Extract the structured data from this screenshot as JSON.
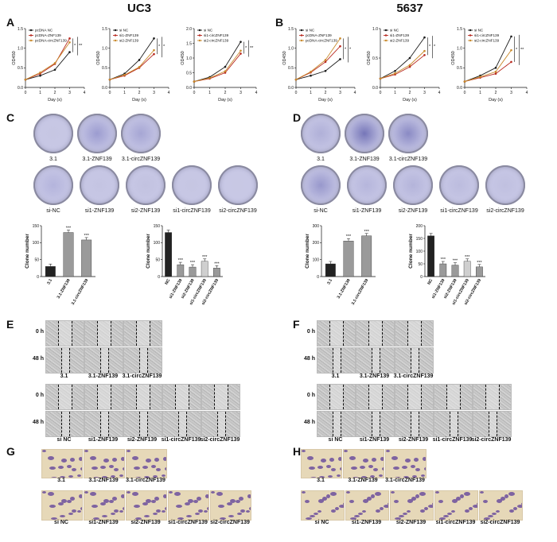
{
  "columns": {
    "left": "UC3",
    "right": "5637"
  },
  "panel_letters": [
    "A",
    "B",
    "C",
    "D",
    "E",
    "F",
    "G",
    "H"
  ],
  "colors": {
    "nc": "#1a1a1a",
    "si1": "#b8281e",
    "si2": "#c98a2b",
    "dish": "#c8c8e6",
    "stain": "#5b3c9a",
    "bar_dark": "#222222",
    "bar_mid": "#9a9a9a",
    "bar_light": "#cfcfcf"
  },
  "chart_data": [
    {
      "id": "A1",
      "type": "line",
      "xlabel": "Day (s)",
      "ylabel": "OD450",
      "ylim": [
        0,
        1.5
      ],
      "yticks": [
        "0.0",
        "0.5",
        "1.0",
        "1.5"
      ],
      "xlim": [
        0,
        4
      ],
      "xticks": [
        "0",
        "1",
        "2",
        "3",
        "4"
      ],
      "x": [
        0,
        1,
        2,
        3
      ],
      "series": [
        {
          "name": "pcDNA NC",
          "values": [
            0.2,
            0.3,
            0.45,
            0.9
          ]
        },
        {
          "name": "pcDNA-ZNF139",
          "values": [
            0.2,
            0.35,
            0.6,
            1.25
          ]
        },
        {
          "name": "pcDNA-circZNF139",
          "values": [
            0.2,
            0.38,
            0.62,
            1.15
          ]
        }
      ],
      "annotations": [
        "*",
        "**"
      ]
    },
    {
      "id": "A2",
      "type": "line",
      "xlabel": "Day (s)",
      "ylabel": "OD450",
      "ylim": [
        0,
        1.5
      ],
      "yticks": [
        "0.0",
        "0.5",
        "1.0",
        "1.5"
      ],
      "xlim": [
        0,
        4
      ],
      "xticks": [
        "0",
        "1",
        "2",
        "3",
        "4"
      ],
      "x": [
        0,
        1,
        2,
        3
      ],
      "series": [
        {
          "name": "si NC",
          "values": [
            0.2,
            0.35,
            0.7,
            1.25
          ]
        },
        {
          "name": "si1-ZNF139",
          "values": [
            0.2,
            0.3,
            0.5,
            0.85
          ]
        },
        {
          "name": "si2-ZNF139",
          "values": [
            0.2,
            0.32,
            0.52,
            0.95
          ]
        }
      ],
      "annotations": [
        "*",
        "*"
      ]
    },
    {
      "id": "A3",
      "type": "line",
      "xlabel": "Day (s)",
      "ylabel": "OD450",
      "ylim": [
        0,
        2.0
      ],
      "yticks": [
        "0.0",
        "0.5",
        "1.0",
        "1.5",
        "2.0"
      ],
      "xlim": [
        0,
        4
      ],
      "xticks": [
        "0",
        "1",
        "2",
        "3",
        "4"
      ],
      "x": [
        0,
        1,
        2,
        3
      ],
      "series": [
        {
          "name": "si NC",
          "values": [
            0.2,
            0.35,
            0.7,
            1.55
          ]
        },
        {
          "name": "si1-circZNF139",
          "values": [
            0.2,
            0.3,
            0.5,
            1.15
          ]
        },
        {
          "name": "si2-circZNF139",
          "values": [
            0.2,
            0.32,
            0.55,
            1.25
          ]
        }
      ],
      "annotations": [
        "*",
        "**"
      ]
    },
    {
      "id": "B1",
      "type": "line",
      "xlabel": "Day (s)",
      "ylabel": "OD450",
      "ylim": [
        0,
        1.5
      ],
      "yticks": [
        "0.0",
        "0.5",
        "1.0",
        "1.5"
      ],
      "xlim": [
        0,
        4
      ],
      "xticks": [
        "0",
        "1",
        "2",
        "3",
        "4"
      ],
      "x": [
        0,
        1,
        2,
        3
      ],
      "series": [
        {
          "name": "si NC",
          "values": [
            0.2,
            0.3,
            0.42,
            0.72
          ]
        },
        {
          "name": "pcDNA-ZNF139",
          "values": [
            0.2,
            0.38,
            0.65,
            1.05
          ]
        },
        {
          "name": "pcDNA-circZNF139",
          "values": [
            0.2,
            0.4,
            0.7,
            1.25
          ]
        }
      ],
      "annotations": [
        "*",
        "*"
      ]
    },
    {
      "id": "B2",
      "type": "line",
      "xlabel": "Day (s)",
      "ylabel": "OD450",
      "ylim": [
        0,
        1.0
      ],
      "yticks": [
        "0.0",
        "0.5",
        "1.0"
      ],
      "xlim": [
        0,
        4
      ],
      "xticks": [
        "0",
        "1",
        "2",
        "3",
        "4"
      ],
      "x": [
        0,
        1,
        2,
        3
      ],
      "series": [
        {
          "name": "si NC",
          "values": [
            0.15,
            0.28,
            0.5,
            0.85
          ]
        },
        {
          "name": "si1-ZNF139",
          "values": [
            0.15,
            0.22,
            0.35,
            0.55
          ]
        },
        {
          "name": "si2-ZNF139",
          "values": [
            0.15,
            0.24,
            0.38,
            0.62
          ]
        }
      ],
      "annotations": [
        "*",
        "*"
      ]
    },
    {
      "id": "B3",
      "type": "line",
      "xlabel": "Day (s)",
      "ylabel": "OD450",
      "ylim": [
        0,
        1.5
      ],
      "yticks": [
        "0.0",
        "0.5",
        "1.0",
        "1.5"
      ],
      "xlim": [
        0,
        4
      ],
      "xticks": [
        "0",
        "1",
        "2",
        "3",
        "4"
      ],
      "x": [
        0,
        1,
        2,
        3
      ],
      "series": [
        {
          "name": "si NC",
          "values": [
            0.15,
            0.3,
            0.5,
            1.3
          ]
        },
        {
          "name": "si1-circZNF139",
          "values": [
            0.15,
            0.25,
            0.35,
            0.65
          ]
        },
        {
          "name": "si2-circZNF139",
          "values": [
            0.15,
            0.27,
            0.4,
            0.95
          ]
        }
      ],
      "annotations": [
        "*",
        "**"
      ]
    },
    {
      "id": "C1",
      "type": "bar",
      "ylabel": "Clone number",
      "ylim": [
        0,
        150
      ],
      "yticks": [
        "0",
        "50",
        "100",
        "150"
      ],
      "categories": [
        "3.1",
        "3.1-ZNF139",
        "3.1-circZNF139"
      ],
      "values": [
        30,
        130,
        108
      ],
      "annotations": [
        "",
        "***",
        "***"
      ]
    },
    {
      "id": "C2",
      "type": "bar",
      "ylabel": "Clone number",
      "ylim": [
        0,
        150
      ],
      "yticks": [
        "0",
        "50",
        "100",
        "150"
      ],
      "categories": [
        "NC",
        "si1-ZNF139",
        "si2-ZNF139",
        "si1-circZNF139",
        "si2-circZNF139"
      ],
      "values": [
        130,
        35,
        28,
        45,
        25
      ],
      "annotations": [
        "",
        "***",
        "***",
        "***",
        "***"
      ]
    },
    {
      "id": "D1",
      "type": "bar",
      "ylabel": "Clone number",
      "ylim": [
        0,
        300
      ],
      "yticks": [
        "0",
        "100",
        "200",
        "300"
      ],
      "categories": [
        "3.1",
        "3.1-ZNF139",
        "3.1-circZNF139"
      ],
      "values": [
        75,
        210,
        240
      ],
      "annotations": [
        "",
        "***",
        "***"
      ]
    },
    {
      "id": "D2",
      "type": "bar",
      "ylabel": "Clone number",
      "ylim": [
        0,
        200
      ],
      "yticks": [
        "0",
        "50",
        "100",
        "150",
        "200"
      ],
      "categories": [
        "NC",
        "si1-ZNF139",
        "si2-ZNF139",
        "si1-circZNF139",
        "si2-circZNF139"
      ],
      "values": [
        160,
        50,
        45,
        60,
        38
      ],
      "annotations": [
        "",
        "***",
        "***",
        "***",
        "***"
      ]
    }
  ],
  "colony": {
    "C_top": [
      "3.1",
      "3.1-ZNF139",
      "3.1-circZNF139"
    ],
    "C_bottom": [
      "si-NC",
      "si1-ZNF139",
      "si2-ZNF139",
      "si1-circZNF139",
      "si2-circZNF139"
    ],
    "D_top": [
      "3.1",
      "3.1-ZNF139",
      "3.1-circZNF139"
    ],
    "D_bottom": [
      "si-NC",
      "si1-ZNF139",
      "si2-ZNF139",
      "si1-circZNF139",
      "si2-circZNF139"
    ]
  },
  "wound": {
    "rows": [
      "0 h",
      "48 h"
    ],
    "E_top": [
      "3.1",
      "3.1-ZNF139",
      "3.1-circZNF139"
    ],
    "E_bottom": [
      "si NC",
      "si1-ZNF139",
      "si2-ZNF139",
      "si1-circZNF139",
      "si2-circZNF139"
    ],
    "F_top": [
      "3.1",
      "3.1-ZNF139",
      "3.1-circZNF139"
    ],
    "F_bottom": [
      "si NC",
      "si1-ZNF139",
      "si2-ZNF139",
      "si1-circZNF139",
      "si2-circZNF139"
    ]
  },
  "transwell": {
    "G_top": [
      "3.1",
      "3.1-ZNF139",
      "3.1-circZNF139"
    ],
    "G_bottom": [
      "si NC",
      "si1-ZNF139",
      "si2-ZNF139",
      "si1-circZNF139",
      "si2-circZNF139"
    ],
    "H_top": [
      "3.1",
      "3.1-ZNF139",
      "3.1-circZNF139"
    ],
    "H_bottom": [
      "si NC",
      "si1-ZNF139",
      "si2-ZNF139",
      "si1-circZNF139",
      "si2-circZNF139"
    ]
  }
}
